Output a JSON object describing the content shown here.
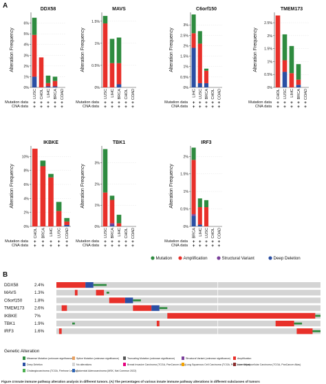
{
  "panel_a_label": "A",
  "panel_b_label": "B",
  "track_labels": {
    "mutation": "Mutation data",
    "cna": "CNA data",
    "mark": "+"
  },
  "ylabel": "Alteration Frequency",
  "legend": [
    {
      "label": "Mutation",
      "color": "#2e8b3f"
    },
    {
      "label": "Amplification",
      "color": "#e8302a"
    },
    {
      "label": "Structural Variant",
      "color": "#7a3f9a"
    },
    {
      "label": "Deep Deletion",
      "color": "#2b4fa3"
    }
  ],
  "colors": {
    "mutation": "#2e8b3f",
    "amplification": "#e8302a",
    "structural": "#7a3f9a",
    "deletion": "#2b4fa3",
    "background": "#d4d4d4"
  },
  "chart_data": [
    {
      "type": "bar",
      "title": "DDX58",
      "ylabel": "Alteration Frequency",
      "ylim": [
        0,
        7
      ],
      "ticks": [
        "0%",
        "1%",
        "2%",
        "3%",
        "4%",
        "5%",
        "6%"
      ],
      "categories": [
        "LUSC",
        "CHOL",
        "LIHC",
        "BRCA",
        "COAD"
      ],
      "series": [
        {
          "name": "Deep Deletion",
          "values": [
            1.0,
            0,
            0.1,
            0.1,
            0
          ]
        },
        {
          "name": "Structural Variant",
          "values": [
            0,
            0,
            0,
            0,
            0
          ]
        },
        {
          "name": "Amplification",
          "values": [
            3.9,
            2.8,
            0.3,
            0.5,
            0
          ]
        },
        {
          "name": "Mutation",
          "values": [
            1.6,
            0,
            0.7,
            0.4,
            0
          ]
        }
      ]
    },
    {
      "type": "bar",
      "title": "MAVS",
      "ylabel": "Alteration Frequency",
      "ylim": [
        0,
        1.7
      ],
      "ticks": [
        "0%",
        "0.5%",
        "1%",
        "1.5%"
      ],
      "categories": [
        "LUSC",
        "LIHC",
        "BRCA",
        "CHOL",
        "COAD"
      ],
      "series": [
        {
          "name": "Deep Deletion",
          "values": [
            0,
            0,
            0.07,
            0,
            0
          ]
        },
        {
          "name": "Structural Variant",
          "values": [
            0,
            0,
            0,
            0,
            0
          ]
        },
        {
          "name": "Amplification",
          "values": [
            1.45,
            0.55,
            0.48,
            0,
            0
          ]
        },
        {
          "name": "Mutation",
          "values": [
            0.17,
            0.55,
            0.58,
            0,
            0
          ]
        }
      ]
    },
    {
      "type": "bar",
      "title": "C6orf150",
      "ylabel": "Alteration Frequency",
      "ylim": [
        0,
        3.6
      ],
      "ticks": [
        "0%",
        "0.5%",
        "1%",
        "1.5%",
        "2%",
        "2.5%",
        "3%"
      ],
      "categories": [
        "LIHC",
        "LUSC",
        "BRCA",
        "CHOL",
        "COAD"
      ],
      "series": [
        {
          "name": "Deep Deletion",
          "values": [
            1.9,
            0.2,
            0.2,
            0,
            0
          ]
        },
        {
          "name": "Structural Variant",
          "values": [
            0,
            0,
            0,
            0,
            0
          ]
        },
        {
          "name": "Amplification",
          "values": [
            0.7,
            1.9,
            0.6,
            0,
            0
          ]
        },
        {
          "name": "Mutation",
          "values": [
            0.9,
            0.6,
            0.1,
            0,
            0
          ]
        }
      ]
    },
    {
      "type": "bar",
      "title": "TMEM173",
      "ylabel": "Alteration Frequency",
      "ylim": [
        0,
        2.9
      ],
      "ticks": [
        "0%",
        "0.5%",
        "1%",
        "1.5%",
        "2%",
        "2.5%"
      ],
      "categories": [
        "CHOL",
        "LUSC",
        "LIHC",
        "BRCA",
        "COAD"
      ],
      "series": [
        {
          "name": "Deep Deletion",
          "values": [
            0,
            0.6,
            0,
            0.1,
            0
          ]
        },
        {
          "name": "Structural Variant",
          "values": [
            0,
            0,
            0,
            0,
            0
          ]
        },
        {
          "name": "Amplification",
          "values": [
            2.78,
            0.45,
            0.55,
            0.2,
            0
          ]
        },
        {
          "name": "Mutation",
          "values": [
            0,
            1.0,
            1.05,
            0.6,
            0
          ]
        }
      ]
    },
    {
      "type": "bar",
      "title": "IKBKE",
      "ylabel": "Alteration Frequency",
      "ylim": [
        0,
        11.5
      ],
      "ticks": [
        "0%",
        "2%",
        "4%",
        "6%",
        "8%",
        "10%"
      ],
      "categories": [
        "CHOL",
        "BRCA",
        "LIHC",
        "LUSC",
        "COAD"
      ],
      "series": [
        {
          "name": "Deep Deletion",
          "values": [
            0,
            0,
            0,
            0,
            0.2
          ]
        },
        {
          "name": "Structural Variant",
          "values": [
            0,
            0,
            0,
            0,
            0
          ]
        },
        {
          "name": "Amplification",
          "values": [
            11.1,
            8.6,
            7.0,
            2.2,
            0.5
          ]
        },
        {
          "name": "Mutation",
          "values": [
            0,
            0.8,
            0.5,
            1.3,
            0.5
          ]
        }
      ]
    },
    {
      "type": "bar",
      "title": "TBK1",
      "ylabel": "Alteration Frequency",
      "ylim": [
        0,
        3.8
      ],
      "ticks": [
        "0%",
        "1%",
        "2%",
        "3%"
      ],
      "categories": [
        "LUSC",
        "BRCA",
        "LIHC",
        "CHOL",
        "COAD"
      ],
      "series": [
        {
          "name": "Deep Deletion",
          "values": [
            0,
            0.05,
            0,
            0,
            0
          ]
        },
        {
          "name": "Structural Variant",
          "values": [
            0,
            0.1,
            0,
            0,
            0
          ]
        },
        {
          "name": "Amplification",
          "values": [
            1.6,
            1.1,
            0.15,
            0,
            0
          ]
        },
        {
          "name": "Mutation",
          "values": [
            2.05,
            0.2,
            0.4,
            0,
            0
          ]
        }
      ]
    },
    {
      "type": "bar",
      "title": "IRF3",
      "ylabel": "Alteration Frequency",
      "ylim": [
        0,
        2.3
      ],
      "ticks": [
        "0%",
        "0.5%",
        "1%",
        "1.5%",
        "2%"
      ],
      "categories": [
        "BRCA",
        "LIHC",
        "LUSC",
        "CHOL",
        "COAD"
      ],
      "series": [
        {
          "name": "Deep Deletion",
          "values": [
            0.3,
            0.05,
            0,
            0,
            0
          ]
        },
        {
          "name": "Structural Variant",
          "values": [
            0.05,
            0,
            0,
            0,
            0
          ]
        },
        {
          "name": "Amplification",
          "values": [
            1.55,
            0.5,
            0.55,
            0,
            0
          ]
        },
        {
          "name": "Mutation",
          "values": [
            0.35,
            0.25,
            0.2,
            0,
            0
          ]
        }
      ]
    }
  ],
  "oncoprint": {
    "rows": [
      {
        "gene": "DDX58",
        "pct": "2.4%",
        "segments": [
          [
            0.0,
            0.11,
            "amplification"
          ],
          [
            0.11,
            0.14,
            "deletion"
          ],
          [
            0.14,
            0.19,
            "mutation"
          ]
        ]
      },
      {
        "gene": "MAVS",
        "pct": "1.3%",
        "segments": [
          [
            0.07,
            0.08,
            "amplification"
          ],
          [
            0.15,
            0.18,
            "amplification"
          ],
          [
            0.19,
            0.2,
            "mutation"
          ]
        ]
      },
      {
        "gene": "C6orf150",
        "pct": "1.8%",
        "segments": [
          [
            0.2,
            0.26,
            "amplification"
          ],
          [
            0.26,
            0.29,
            "deletion"
          ],
          [
            0.29,
            0.32,
            "mutation"
          ]
        ]
      },
      {
        "gene": "TMEM173",
        "pct": "2.6%",
        "segments": [
          [
            0.02,
            0.04,
            "amplification"
          ],
          [
            0.29,
            0.36,
            "amplification"
          ],
          [
            0.36,
            0.39,
            "deletion"
          ],
          [
            0.39,
            0.42,
            "mutation"
          ]
        ]
      },
      {
        "gene": "IKBKE",
        "pct": "7%",
        "segments": [
          [
            0.42,
            0.98,
            "amplification"
          ],
          [
            0.98,
            1.0,
            "mutation"
          ]
        ]
      },
      {
        "gene": "TBK1",
        "pct": "1.9%",
        "segments": [
          [
            0.06,
            0.07,
            "mutation"
          ],
          [
            0.38,
            0.39,
            "amplification"
          ],
          [
            0.83,
            0.9,
            "amplification"
          ],
          [
            0.9,
            0.93,
            "mutation"
          ]
        ]
      },
      {
        "gene": "IRF3",
        "pct": "1.6%",
        "segments": [
          [
            0.01,
            0.02,
            "amplification"
          ],
          [
            0.91,
            0.97,
            "amplification"
          ],
          [
            0.97,
            1.0,
            "mutation"
          ]
        ]
      }
    ]
  },
  "genetic_alteration": {
    "title": "Genetic Alteration",
    "items": [
      {
        "label": "Missense Mutation (unknown significance)",
        "color": "#2e8b3f"
      },
      {
        "label": "Splice Mutation (unknown significance)",
        "color": "#e8a060"
      },
      {
        "label": "Truncating Mutation (unknown significance)",
        "color": "#555555"
      },
      {
        "label": "Structural Variant (unknown significance)",
        "color": "#7a3f9a"
      },
      {
        "label": "Amplification",
        "color": "#e8302a"
      },
      {
        "label": "Deep Deletion",
        "color": "#2b4fa3"
      },
      {
        "label": "No alterations",
        "color": "#d4d4d4"
      },
      {
        "label": "Breast Invasive Carcinoma (TCGA, PanCancer Atlas)",
        "color": "#e6007e"
      },
      {
        "label": "Lung Squamous Cell Carcinoma (TCGA, PanCancer Atlas)",
        "color": "#f4a300"
      },
      {
        "label": "Liver Hepatocellular Carcinoma (TCGA, PanCancer Atlas)",
        "color": "#8b2c2c"
      },
      {
        "label": "Cholangiocarcinoma (TCGA, Firehose Legacy)",
        "color": "#4cb050"
      },
      {
        "label": "Colorectal Adenocarcinoma (MSK, Nat Commun 2022)",
        "color": "#2b63b5"
      }
    ]
  },
  "caption": "Figure 4  Innate immune pathway alteration analysis in different tumors. (A) The percentages of various innate immune pathway alterations in different subclasses of tumors"
}
